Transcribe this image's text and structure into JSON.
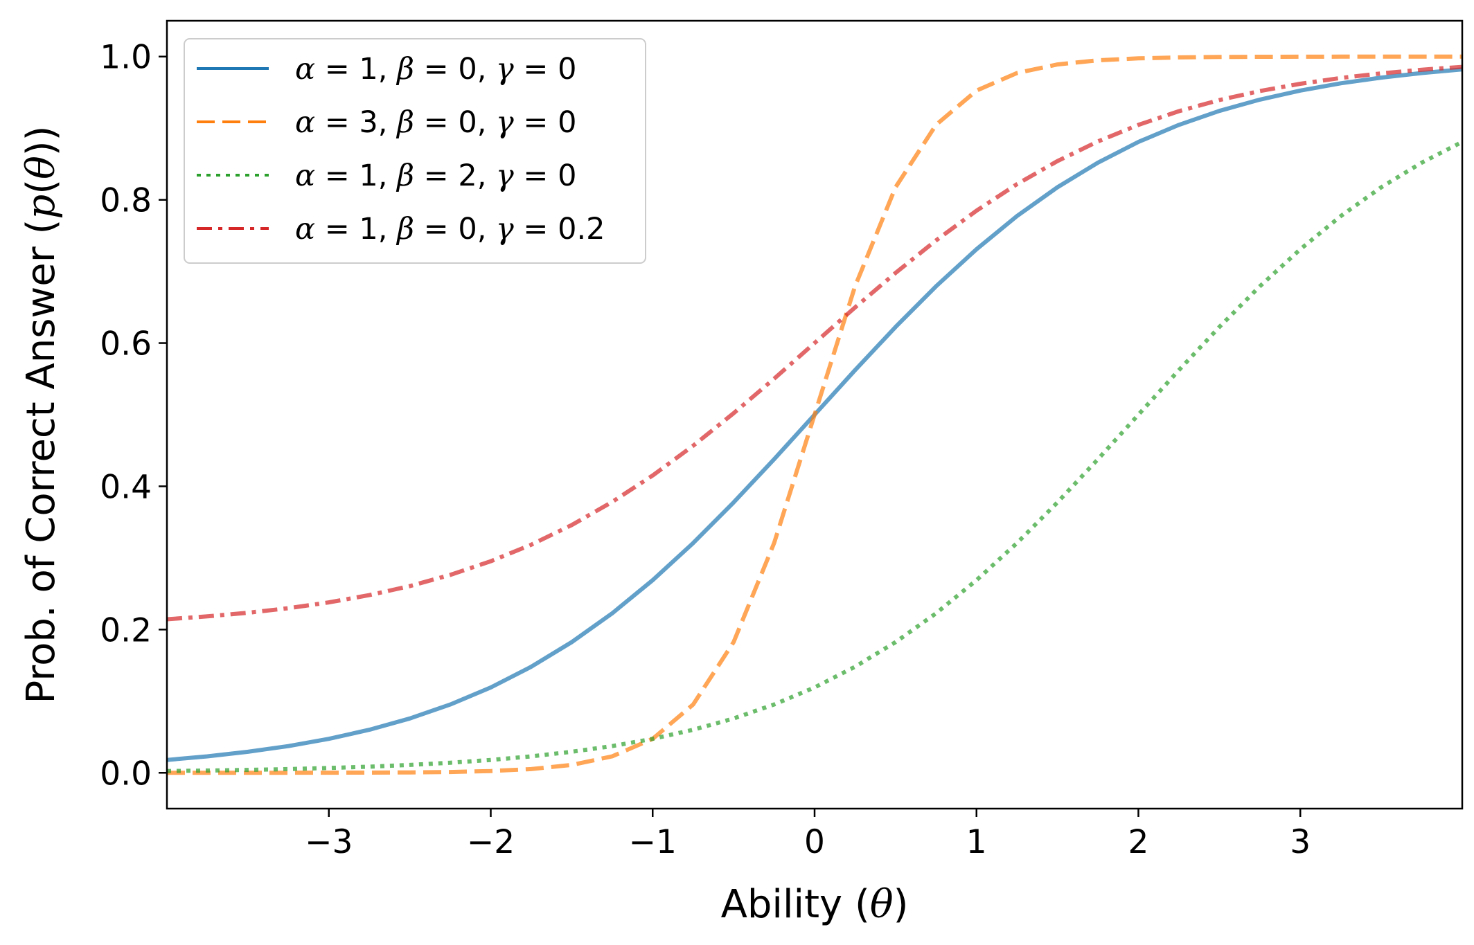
{
  "chart_data": {
    "type": "line",
    "title": "",
    "xlabel": "Ability (θ)",
    "ylabel": "Prob. of Correct Answer (p(θ))",
    "xlim": [
      -4,
      4
    ],
    "ylim": [
      -0.05,
      1.05
    ],
    "xticks": [
      -3,
      -2,
      -1,
      0,
      1,
      2,
      3
    ],
    "xtick_labels": [
      "−3",
      "−2",
      "−1",
      "0",
      "1",
      "2",
      "3"
    ],
    "yticks": [
      0.0,
      0.2,
      0.4,
      0.6,
      0.8,
      1.0
    ],
    "ytick_labels": [
      "0.0",
      "0.2",
      "0.4",
      "0.6",
      "0.8",
      "1.0"
    ],
    "legend_position": "upper-left",
    "series": [
      {
        "name": "α = 1, β = 0, γ = 0",
        "alpha": 1,
        "beta": 0,
        "gamma": 0,
        "color": "#1f77b4",
        "dash": "solid"
      },
      {
        "name": "α = 3, β = 0, γ = 0",
        "alpha": 3,
        "beta": 0,
        "gamma": 0,
        "color": "#ff7f0e",
        "dash": "dashed"
      },
      {
        "name": "α = 1, β = 2, γ = 0",
        "alpha": 1,
        "beta": 2,
        "gamma": 0,
        "color": "#2ca02c",
        "dash": "dotted"
      },
      {
        "name": "α = 1, β = 0, γ = 0.2",
        "alpha": 1,
        "beta": 0,
        "gamma": 0.2,
        "color": "#d62728",
        "dash": "dashdot"
      }
    ],
    "x_samples": [
      -4,
      -3.75,
      -3.5,
      -3.25,
      -3,
      -2.75,
      -2.5,
      -2.25,
      -2,
      -1.75,
      -1.5,
      -1.25,
      -1,
      -0.75,
      -0.5,
      -0.25,
      0,
      0.25,
      0.5,
      0.75,
      1,
      1.25,
      1.5,
      1.75,
      2,
      2.25,
      2.5,
      2.75,
      3,
      3.25,
      3.5,
      3.75,
      4
    ]
  },
  "legend": {
    "entries": [
      {
        "alpha": "1",
        "beta": "0",
        "gamma": "0"
      },
      {
        "alpha": "3",
        "beta": "0",
        "gamma": "0"
      },
      {
        "alpha": "1",
        "beta": "2",
        "gamma": "0"
      },
      {
        "alpha": "1",
        "beta": "0",
        "gamma": "0.2"
      }
    ]
  },
  "axes": {
    "xlabel_text": "Ability (",
    "xlabel_symbol": "θ",
    "xlabel_close": ")",
    "ylabel_text": "Prob. of Correct Answer (",
    "ylabel_p": "p",
    "ylabel_open": "(",
    "ylabel_symbol": "θ",
    "ylabel_close": "))"
  }
}
